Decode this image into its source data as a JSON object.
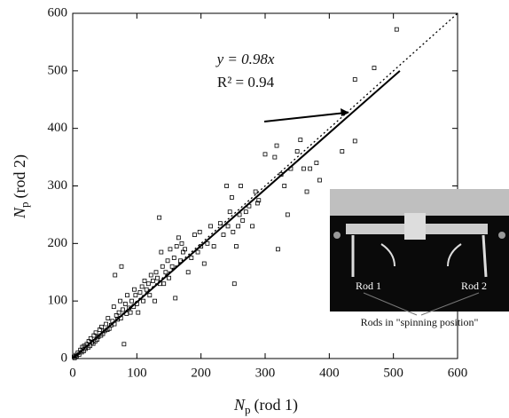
{
  "chart_data": {
    "type": "scatter",
    "xlabel": {
      "symbol": "N",
      "subscript": "p",
      "text": "(rod 1)"
    },
    "ylabel": {
      "symbol": "N",
      "subscript": "p",
      "text": "(rod 2)"
    },
    "annotation": {
      "equation": "y = 0.98x",
      "r2": "R² = 0.94"
    },
    "inset": {
      "label_rod1": "Rod 1",
      "label_rod2": "Rod 2",
      "caption": "Rods in \"spinning position\""
    },
    "xlim": [
      0,
      600
    ],
    "ylim": [
      0,
      600
    ],
    "xticks": [
      0,
      100,
      200,
      300,
      400,
      500,
      600
    ],
    "yticks": [
      0,
      100,
      200,
      300,
      400,
      500,
      600
    ],
    "fit_line": {
      "x": [
        0,
        510
      ],
      "y": [
        0,
        500
      ]
    },
    "identity_line": {
      "x": [
        0,
        600
      ],
      "y": [
        0,
        600
      ]
    },
    "x": [
      2,
      3,
      5,
      6,
      8,
      10,
      12,
      14,
      15,
      17,
      18,
      20,
      22,
      24,
      25,
      27,
      28,
      30,
      32,
      33,
      35,
      36,
      38,
      40,
      42,
      44,
      45,
      47,
      50,
      52,
      54,
      55,
      57,
      60,
      62,
      64,
      65,
      66,
      68,
      70,
      72,
      74,
      75,
      76,
      78,
      80,
      82,
      84,
      85,
      88,
      90,
      92,
      95,
      96,
      98,
      100,
      102,
      105,
      108,
      110,
      112,
      115,
      118,
      120,
      122,
      125,
      128,
      130,
      132,
      135,
      136,
      138,
      140,
      142,
      145,
      148,
      150,
      152,
      155,
      158,
      160,
      162,
      165,
      168,
      170,
      172,
      175,
      180,
      185,
      190,
      195,
      198,
      200,
      205,
      210,
      215,
      220,
      230,
      235,
      240,
      242,
      245,
      248,
      250,
      252,
      255,
      258,
      260,
      262,
      265,
      270,
      275,
      280,
      285,
      288,
      290,
      300,
      315,
      318,
      320,
      325,
      330,
      335,
      340,
      350,
      355,
      360,
      365,
      370,
      380,
      385,
      420,
      440,
      440,
      470,
      505
    ],
    "values": [
      3,
      1,
      6,
      4,
      10,
      7,
      15,
      11,
      20,
      13,
      22,
      17,
      25,
      19,
      30,
      22,
      35,
      28,
      26,
      40,
      30,
      45,
      33,
      38,
      50,
      40,
      55,
      43,
      48,
      60,
      50,
      70,
      52,
      58,
      65,
      90,
      60,
      145,
      75,
      68,
      80,
      100,
      70,
      160,
      85,
      25,
      95,
      78,
      110,
      88,
      80,
      100,
      90,
      120,
      110,
      95,
      80,
      115,
      125,
      100,
      135,
      120,
      130,
      110,
      145,
      135,
      100,
      150,
      140,
      245,
      130,
      185,
      160,
      130,
      150,
      170,
      140,
      190,
      160,
      175,
      105,
      195,
      210,
      170,
      200,
      185,
      190,
      150,
      175,
      215,
      185,
      220,
      195,
      165,
      200,
      230,
      195,
      235,
      215,
      300,
      230,
      255,
      280,
      220,
      130,
      195,
      230,
      250,
      300,
      240,
      255,
      265,
      230,
      290,
      270,
      275,
      355,
      350,
      370,
      190,
      320,
      300,
      250,
      330,
      360,
      380,
      330,
      290,
      330,
      340,
      310,
      360,
      485,
      378,
      505,
      572
    ]
  }
}
